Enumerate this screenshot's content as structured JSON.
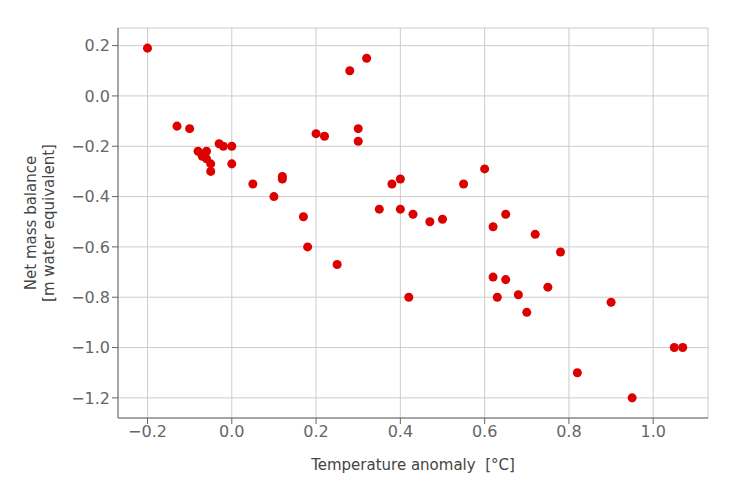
{
  "chart_data": {
    "type": "scatter",
    "xlabel": "Temperature anomaly  [°C]",
    "ylabel": "Net mass balance\n[m water equivalent]",
    "x": [
      -0.2,
      -0.13,
      -0.1,
      -0.08,
      -0.07,
      -0.06,
      -0.06,
      -0.05,
      -0.05,
      -0.03,
      -0.02,
      0.0,
      0.0,
      0.05,
      0.1,
      0.12,
      0.12,
      0.17,
      0.18,
      0.2,
      0.22,
      0.25,
      0.28,
      0.3,
      0.3,
      0.32,
      0.35,
      0.38,
      0.4,
      0.4,
      0.42,
      0.43,
      0.47,
      0.5,
      0.55,
      0.6,
      0.62,
      0.62,
      0.63,
      0.65,
      0.65,
      0.68,
      0.7,
      0.72,
      0.75,
      0.78,
      0.82,
      0.9,
      0.95,
      1.05,
      1.07
    ],
    "values": [
      0.19,
      -0.12,
      -0.13,
      -0.22,
      -0.24,
      -0.25,
      -0.22,
      -0.27,
      -0.3,
      -0.19,
      -0.2,
      -0.2,
      -0.27,
      -0.35,
      -0.4,
      -0.32,
      -0.33,
      -0.48,
      -0.6,
      -0.15,
      -0.16,
      -0.67,
      0.1,
      -0.18,
      -0.13,
      0.15,
      -0.45,
      -0.35,
      -0.33,
      -0.45,
      -0.8,
      -0.47,
      -0.5,
      -0.49,
      -0.35,
      -0.29,
      -0.52,
      -0.72,
      -0.8,
      -0.47,
      -0.73,
      -0.79,
      -0.86,
      -0.55,
      -0.76,
      -0.62,
      -1.1,
      -0.82,
      -1.2,
      -1.0,
      -1.0
    ],
    "color": "#dd0000",
    "xlim": [
      -0.27,
      1.13
    ],
    "ylim": [
      -1.28,
      0.27
    ],
    "xticks": [
      {
        "value": -0.2,
        "label": "−0.2"
      },
      {
        "value": 0.0,
        "label": "0.0"
      },
      0.2,
      0.4,
      0.6,
      0.8,
      {
        "value": 1.0,
        "label": "1.0"
      }
    ],
    "yticks": [
      0.2,
      {
        "value": 0.0,
        "label": "0.0"
      },
      {
        "value": -0.2,
        "label": "−0.2"
      },
      {
        "value": -0.4,
        "label": "−0.4"
      },
      {
        "value": -0.6,
        "label": "−0.6"
      },
      {
        "value": -0.8,
        "label": "−0.8"
      },
      {
        "value": -1.0,
        "label": "−1.0"
      },
      {
        "value": -1.2,
        "label": "−1.2"
      }
    ],
    "grid": true
  }
}
